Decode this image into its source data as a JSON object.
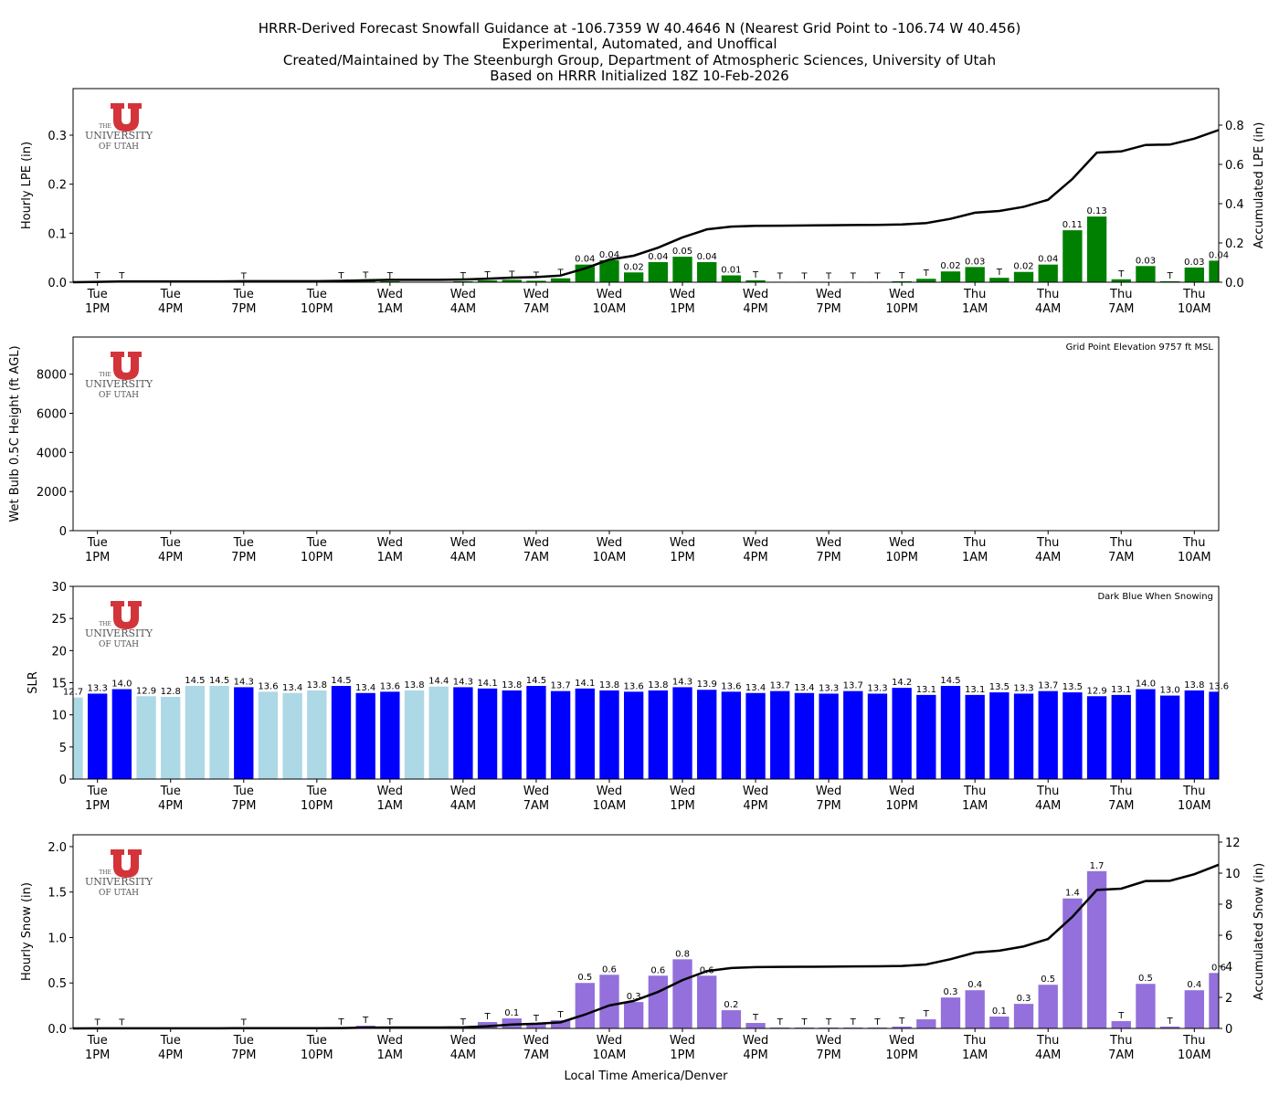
{
  "title": [
    "HRRR-Derived Forecast Snowfall Guidance at -106.7359 W 40.4646 N (Nearest Grid Point to -106.74 W 40.456)",
    "Experimental, Automated, and Unoffical",
    "Created/Maintained by The Steenburgh Group, Department of Atmospheric Sciences, University of Utah",
    "Based on HRRR Initialized 18Z 10-Feb-2026"
  ],
  "logo": {
    "the": "THE",
    "university": "UNIVERSITY",
    "of_utah": "OF UTAH"
  },
  "chart_data": [
    {
      "type": "bar",
      "ylabel": "Hourly LPE (in)",
      "y2label": "Accumulated LPE (in)",
      "categories": [
        null,
        "Tue\n1PM",
        null,
        null,
        "Tue\n4PM",
        null,
        null,
        "Tue\n7PM",
        null,
        null,
        "Tue\n10PM",
        null,
        null,
        "Wed\n1AM",
        null,
        null,
        "Wed\n4AM",
        null,
        null,
        "Wed\n7AM",
        null,
        null,
        "Wed\n10AM",
        null,
        null,
        "Wed\n1PM",
        null,
        null,
        "Wed\n4PM",
        null,
        null,
        "Wed\n7PM",
        null,
        null,
        "Wed\n10PM",
        null,
        null,
        "Thu\n1AM",
        null,
        null,
        "Thu\n4AM",
        null,
        null,
        "Thu\n7AM",
        null,
        null,
        "Thu\n10AM",
        null
      ],
      "ylim": [
        0,
        0.395
      ],
      "yticks": [
        {
          "value": 0,
          "label": "0.0"
        },
        0.1,
        0.2,
        0.3
      ],
      "y2lim": [
        0,
        0.986
      ],
      "y2ticks": [
        {
          "value": 0,
          "label": "0.0"
        },
        0.2,
        0.4,
        0.6,
        0.8
      ],
      "series": [
        {
          "type": "bar",
          "color": "#008000",
          "values": [
            0,
            0.002,
            0.002,
            0,
            0,
            0,
            0,
            0.001,
            0,
            0,
            0,
            0.002,
            0.003,
            0.002,
            0,
            0,
            0.002,
            0.004,
            0.005,
            0.003,
            0.008,
            0.036,
            0.045,
            0.02,
            0.041,
            0.052,
            0.041,
            0.014,
            0.004,
            0.001,
            0.001,
            0.001,
            0.001,
            0.001,
            0.002,
            0.007,
            0.022,
            0.031,
            0.009,
            0.021,
            0.036,
            0.106,
            0.134,
            0.006,
            0.033,
            0.002,
            0.03,
            0.044
          ],
          "value_labels": [
            null,
            "T",
            "T",
            null,
            null,
            null,
            null,
            "T",
            null,
            null,
            null,
            "T",
            "T",
            "T",
            null,
            null,
            "T",
            "T",
            "T",
            "T",
            "T",
            "0.04",
            "0.04",
            "0.02",
            "0.04",
            "0.05",
            "0.04",
            "0.01",
            "T",
            "T",
            "T",
            "T",
            "T",
            "T",
            "T",
            "T",
            "0.02",
            "0.03",
            "T",
            "0.02",
            "0.04",
            "0.11",
            "0.13",
            "T",
            "0.03",
            "T",
            "0.03",
            "0.04"
          ]
        },
        {
          "type": "line",
          "color": "#000000",
          "axis": "y2",
          "values": [
            0,
            0.002,
            0.004,
            0.004,
            0.004,
            0.004,
            0.004,
            0.005,
            0.005,
            0.005,
            0.005,
            0.007,
            0.01,
            0.012,
            0.012,
            0.012,
            0.014,
            0.018,
            0.023,
            0.026,
            0.034,
            0.07,
            0.115,
            0.135,
            0.176,
            0.228,
            0.269,
            0.283,
            0.287,
            0.288,
            0.289,
            0.29,
            0.291,
            0.292,
            0.294,
            0.301,
            0.323,
            0.354,
            0.363,
            0.384,
            0.42,
            0.526,
            0.66,
            0.666,
            0.699,
            0.701,
            0.731,
            0.775
          ]
        }
      ]
    },
    {
      "type": "bar",
      "ylabel": "Wet Bulb 0.5C Height (ft AGL)",
      "annotation": "Grid Point Elevation 9757 ft MSL",
      "categories": [
        null,
        "Tue\n1PM",
        null,
        null,
        "Tue\n4PM",
        null,
        null,
        "Tue\n7PM",
        null,
        null,
        "Tue\n10PM",
        null,
        null,
        "Wed\n1AM",
        null,
        null,
        "Wed\n4AM",
        null,
        null,
        "Wed\n7AM",
        null,
        null,
        "Wed\n10AM",
        null,
        null,
        "Wed\n1PM",
        null,
        null,
        "Wed\n4PM",
        null,
        null,
        "Wed\n7PM",
        null,
        null,
        "Wed\n10PM",
        null,
        null,
        "Thu\n1AM",
        null,
        null,
        "Thu\n4AM",
        null,
        null,
        "Thu\n7AM",
        null,
        null,
        "Thu\n10AM",
        null
      ],
      "ylim": [
        0,
        9900
      ],
      "yticks": [
        0,
        2000,
        4000,
        6000,
        8000
      ],
      "series": []
    },
    {
      "type": "bar",
      "ylabel": "SLR",
      "annotation": "Dark Blue When Snowing",
      "categories": [
        null,
        "Tue\n1PM",
        null,
        null,
        "Tue\n4PM",
        null,
        null,
        "Tue\n7PM",
        null,
        null,
        "Tue\n10PM",
        null,
        null,
        "Wed\n1AM",
        null,
        null,
        "Wed\n4AM",
        null,
        null,
        "Wed\n7AM",
        null,
        null,
        "Wed\n10AM",
        null,
        null,
        "Wed\n1PM",
        null,
        null,
        "Wed\n4PM",
        null,
        null,
        "Wed\n7PM",
        null,
        null,
        "Wed\n10PM",
        null,
        null,
        "Thu\n1AM",
        null,
        null,
        "Thu\n4AM",
        null,
        null,
        "Thu\n7AM",
        null,
        null,
        "Thu\n10AM",
        null
      ],
      "ylim": [
        0,
        30
      ],
      "yticks": [
        0,
        5,
        10,
        15,
        20,
        25,
        30
      ],
      "series": [
        {
          "type": "bar",
          "colors": [
            "#add8e6",
            "#0000ff",
            "#0000ff",
            "#add8e6",
            "#add8e6",
            "#add8e6",
            "#add8e6",
            "#0000ff",
            "#add8e6",
            "#add8e6",
            "#add8e6",
            "#0000ff",
            "#0000ff",
            "#0000ff",
            "#add8e6",
            "#add8e6",
            "#0000ff",
            "#0000ff",
            "#0000ff",
            "#0000ff",
            "#0000ff",
            "#0000ff",
            "#0000ff",
            "#0000ff",
            "#0000ff",
            "#0000ff",
            "#0000ff",
            "#0000ff",
            "#0000ff",
            "#0000ff",
            "#0000ff",
            "#0000ff",
            "#0000ff",
            "#0000ff",
            "#0000ff",
            "#0000ff",
            "#0000ff",
            "#0000ff",
            "#0000ff",
            "#0000ff",
            "#0000ff",
            "#0000ff",
            "#0000ff",
            "#0000ff",
            "#0000ff",
            "#0000ff",
            "#0000ff",
            "#0000ff"
          ],
          "values": [
            12.7,
            13.3,
            14.0,
            12.9,
            12.8,
            14.5,
            14.5,
            14.3,
            13.6,
            13.4,
            13.8,
            14.5,
            13.4,
            13.6,
            13.8,
            14.4,
            14.3,
            14.1,
            13.8,
            14.5,
            13.7,
            14.1,
            13.8,
            13.6,
            13.8,
            14.3,
            13.9,
            13.6,
            13.4,
            13.7,
            13.4,
            13.3,
            13.7,
            13.3,
            14.2,
            13.1,
            14.5,
            13.1,
            13.5,
            13.3,
            13.7,
            13.5,
            12.9,
            13.1,
            14.0,
            13.0,
            13.8,
            13.6
          ],
          "value_labels": [
            "12.7",
            "13.3",
            "14.0",
            "12.9",
            "12.8",
            "14.5",
            "14.5",
            "14.3",
            "13.6",
            "13.4",
            "13.8",
            "14.5",
            "13.4",
            "13.6",
            "13.8",
            "14.4",
            "14.3",
            "14.1",
            "13.8",
            "14.5",
            "13.7",
            "14.1",
            "13.8",
            "13.6",
            "13.8",
            "14.3",
            "13.9",
            "13.6",
            "13.4",
            "13.7",
            "13.4",
            "13.3",
            "13.7",
            "13.3",
            "14.2",
            "13.1",
            "14.5",
            "13.1",
            "13.5",
            "13.3",
            "13.7",
            "13.5",
            "12.9",
            "13.1",
            "14.0",
            "13.0",
            "13.8",
            "13.6"
          ]
        }
      ]
    },
    {
      "type": "bar",
      "ylabel": "Hourly Snow (in)",
      "y2label": "Accumulated Snow (in)",
      "xlabel": "Local Time America/Denver",
      "categories": [
        null,
        "Tue\n1PM",
        null,
        null,
        "Tue\n4PM",
        null,
        null,
        "Tue\n7PM",
        null,
        null,
        "Tue\n10PM",
        null,
        null,
        "Wed\n1AM",
        null,
        null,
        "Wed\n4AM",
        null,
        null,
        "Wed\n7AM",
        null,
        null,
        "Wed\n10AM",
        null,
        null,
        "Wed\n1PM",
        null,
        null,
        "Wed\n4PM",
        null,
        null,
        "Wed\n7PM",
        null,
        null,
        "Wed\n10PM",
        null,
        null,
        "Thu\n1AM",
        null,
        null,
        "Thu\n4AM",
        null,
        null,
        "Thu\n7AM",
        null,
        null,
        "Thu\n10AM",
        null
      ],
      "ylim": [
        0,
        2.13
      ],
      "yticks": [
        {
          "value": 0,
          "label": "0.0"
        },
        0.5,
        {
          "value": 1,
          "label": "1.0"
        },
        1.5,
        {
          "value": 2,
          "label": "2.0"
        }
      ],
      "y2lim": [
        0,
        12.47
      ],
      "y2ticks": [
        0,
        2,
        4,
        6,
        8,
        10,
        12
      ],
      "series": [
        {
          "type": "bar",
          "color": "#9370db",
          "values": [
            0,
            0.005,
            0.005,
            0,
            0,
            0,
            0,
            0.003,
            0,
            0,
            0,
            0.008,
            0.03,
            0.01,
            0,
            0,
            0.01,
            0.07,
            0.11,
            0.05,
            0.09,
            0.5,
            0.59,
            0.29,
            0.58,
            0.76,
            0.58,
            0.2,
            0.06,
            0.01,
            0.01,
            0.01,
            0.01,
            0.01,
            0.02,
            0.1,
            0.34,
            0.42,
            0.13,
            0.27,
            0.48,
            1.43,
            1.73,
            0.08,
            0.49,
            0.02,
            0.42,
            0.61
          ],
          "value_labels": [
            null,
            "T",
            "T",
            null,
            null,
            null,
            null,
            "T",
            null,
            null,
            null,
            "T",
            "T",
            "T",
            null,
            null,
            "T",
            "T",
            "0.1",
            "T",
            "T",
            "0.5",
            "0.6",
            "0.3",
            "0.6",
            "0.8",
            "0.6",
            "0.2",
            "T",
            "T",
            "T",
            "T",
            "T",
            "T",
            "T",
            "T",
            "0.3",
            "0.4",
            "0.1",
            "0.3",
            "0.5",
            "1.4",
            "1.7",
            "T",
            "0.5",
            "T",
            "0.4",
            "0.6"
          ]
        },
        {
          "type": "line",
          "color": "#000000",
          "axis": "y2",
          "values": [
            0,
            0.005,
            0.01,
            0.01,
            0.01,
            0.01,
            0.01,
            0.013,
            0.013,
            0.013,
            0.013,
            0.021,
            0.051,
            0.061,
            0.061,
            0.061,
            0.071,
            0.14,
            0.25,
            0.3,
            0.39,
            0.89,
            1.48,
            1.77,
            2.35,
            3.11,
            3.69,
            3.89,
            3.95,
            3.96,
            3.97,
            3.98,
            3.99,
            4.0,
            4.02,
            4.12,
            4.46,
            4.88,
            5.01,
            5.28,
            5.76,
            7.19,
            8.92,
            9.0,
            9.49,
            9.51,
            9.93,
            10.54
          ]
        }
      ]
    }
  ]
}
